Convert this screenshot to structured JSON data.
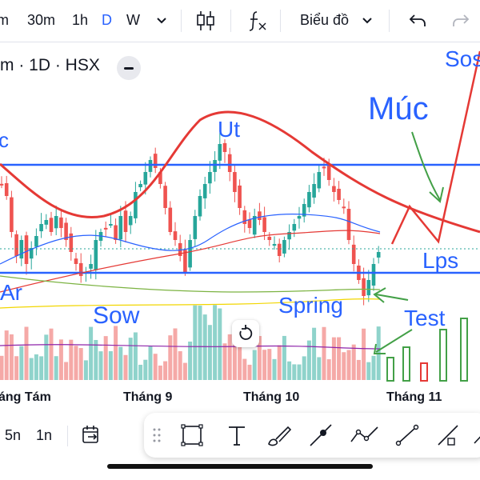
{
  "toolbar": {
    "intervals": [
      "m",
      "30m",
      "1h",
      "D",
      "W"
    ],
    "active_interval": "D",
    "chart_type_menu": "Biểu đồ",
    "accent_color": "#2962ff"
  },
  "legend": {
    "symbol_text": "m · 1D · HSX"
  },
  "x_axis": [
    "áng Tám",
    "Tháng 9",
    "Tháng 10",
    "Tháng 11"
  ],
  "annotations": {
    "muc": "Múc",
    "sos": "Sos",
    "ut": "Ut",
    "lps": "Lps",
    "ar": "Ar",
    "sow": "Sow",
    "spring": "Spring",
    "test": "Test",
    "c": "c"
  },
  "bottom": {
    "range_5n": "5n",
    "range_1n": "1n"
  },
  "icons": [
    "chevron-down-icon",
    "candles-icon",
    "fx-icon",
    "undo-icon",
    "redo-icon",
    "goto-date-icon",
    "drag-handle-icon",
    "rectangle-icon",
    "text-icon",
    "brush-icon",
    "trend-line-icon",
    "path-icon",
    "line-icon",
    "ray-icon",
    "reset-icon"
  ],
  "colors": {
    "up": "#26a69a",
    "down": "#ef5350",
    "annotation": "#2962ff",
    "red_curve": "#e53935",
    "green_arrow": "#43a047"
  }
}
